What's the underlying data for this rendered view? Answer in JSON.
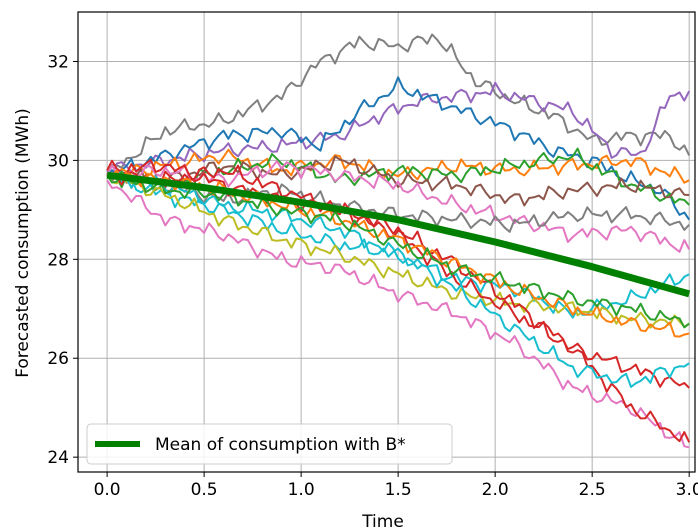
{
  "chart_data": {
    "type": "line",
    "title": "",
    "xlabel": "Time",
    "ylabel": "Forecasted consumption (MWh)",
    "xlim": [
      -0.15,
      3.03
    ],
    "ylim": [
      23.7,
      33.0
    ],
    "x_ticks": [
      0.0,
      0.5,
      1.0,
      1.5,
      2.0,
      2.5,
      3.0
    ],
    "x_tick_labels": [
      "0.0",
      "0.5",
      "1.0",
      "1.5",
      "2.0",
      "2.5",
      "3.0"
    ],
    "y_ticks": [
      24,
      26,
      28,
      30,
      32
    ],
    "y_tick_labels": [
      "24",
      "26",
      "28",
      "30",
      "32"
    ],
    "grid": true,
    "legend_position": "lower-left",
    "legend": [
      {
        "label": "Mean of consumption with B*",
        "color": "#008000"
      }
    ],
    "mean_series": {
      "name": "Mean of consumption with B*",
      "color": "#008000",
      "x": [
        0.0,
        0.5,
        1.0,
        1.5,
        2.0,
        2.5,
        3.0
      ],
      "y": [
        29.7,
        29.45,
        29.15,
        28.8,
        28.35,
        27.85,
        27.3
      ]
    },
    "series": [
      {
        "color": "#808080",
        "x": [
          0.0,
          0.3,
          0.6,
          0.9,
          1.1,
          1.3,
          1.5,
          1.7,
          1.9,
          2.1,
          2.3,
          2.5,
          2.7,
          2.9,
          3.0
        ],
        "y": [
          29.7,
          30.6,
          30.8,
          31.3,
          32.0,
          32.4,
          32.3,
          32.5,
          31.6,
          31.2,
          30.9,
          30.4,
          30.5,
          30.5,
          30.1
        ]
      },
      {
        "color": "#9467bd",
        "x": [
          0.0,
          0.3,
          0.6,
          0.9,
          1.2,
          1.4,
          1.6,
          1.8,
          2.0,
          2.2,
          2.4,
          2.6,
          2.75,
          2.9,
          3.0
        ],
        "y": [
          29.8,
          30.0,
          30.2,
          30.3,
          30.5,
          30.9,
          31.2,
          31.3,
          31.4,
          31.2,
          31.0,
          30.2,
          30.1,
          31.3,
          31.4
        ]
      },
      {
        "color": "#1f77b4",
        "x": [
          0.0,
          0.3,
          0.6,
          0.9,
          1.1,
          1.3,
          1.5,
          1.7,
          1.9,
          2.1,
          2.3,
          2.5,
          2.7,
          2.85,
          3.0
        ],
        "y": [
          29.7,
          30.1,
          30.5,
          30.6,
          30.3,
          31.0,
          31.5,
          31.2,
          30.9,
          30.6,
          30.2,
          30.0,
          29.6,
          29.4,
          28.8
        ]
      },
      {
        "color": "#ff7f0e",
        "x": [
          0.0,
          0.3,
          0.6,
          0.9,
          1.2,
          1.5,
          1.8,
          2.1,
          2.4,
          2.7,
          3.0
        ],
        "y": [
          29.7,
          29.9,
          30.1,
          29.8,
          30.0,
          29.7,
          29.9,
          29.8,
          29.9,
          30.0,
          29.6
        ]
      },
      {
        "color": "#2ca02c",
        "x": [
          0.0,
          0.3,
          0.6,
          0.9,
          1.2,
          1.5,
          1.8,
          2.1,
          2.4,
          2.7,
          3.0
        ],
        "y": [
          29.7,
          29.5,
          29.8,
          30.0,
          29.6,
          29.8,
          29.7,
          29.9,
          30.1,
          29.5,
          29.1
        ]
      },
      {
        "color": "#8c564b",
        "x": [
          0.0,
          0.3,
          0.6,
          0.9,
          1.2,
          1.5,
          1.8,
          2.1,
          2.4,
          2.7,
          3.0
        ],
        "y": [
          29.7,
          29.6,
          29.9,
          29.7,
          30.0,
          29.6,
          29.5,
          29.2,
          29.4,
          29.5,
          29.3
        ]
      },
      {
        "color": "#e377c2",
        "x": [
          0.0,
          0.3,
          0.6,
          0.9,
          1.2,
          1.5,
          1.8,
          2.1,
          2.4,
          2.7,
          3.0
        ],
        "y": [
          29.7,
          29.8,
          29.6,
          29.9,
          29.7,
          29.5,
          29.1,
          28.8,
          28.5,
          28.6,
          28.2
        ]
      },
      {
        "color": "#7f7f7f",
        "x": [
          0.0,
          0.3,
          0.6,
          0.9,
          1.2,
          1.5,
          1.8,
          2.1,
          2.4,
          2.7,
          3.0
        ],
        "y": [
          29.7,
          29.5,
          29.2,
          29.4,
          29.1,
          28.9,
          28.8,
          28.7,
          28.9,
          28.9,
          28.7
        ]
      },
      {
        "color": "#17becf",
        "x": [
          0.0,
          0.3,
          0.6,
          0.9,
          1.2,
          1.5,
          1.8,
          2.1,
          2.4,
          2.7,
          3.0
        ],
        "y": [
          29.7,
          29.3,
          29.0,
          28.6,
          28.3,
          28.1,
          27.6,
          27.4,
          26.9,
          27.2,
          27.7
        ]
      },
      {
        "color": "#bcbd22",
        "x": [
          0.0,
          0.3,
          0.6,
          0.9,
          1.2,
          1.5,
          1.8,
          2.1,
          2.4,
          2.7,
          3.0
        ],
        "y": [
          29.7,
          29.3,
          28.8,
          28.4,
          28.1,
          27.7,
          27.3,
          27.1,
          27.0,
          26.8,
          26.7
        ]
      },
      {
        "color": "#d62728",
        "x": [
          0.0,
          0.3,
          0.6,
          0.9,
          1.2,
          1.5,
          1.8,
          2.1,
          2.4,
          2.7,
          3.0
        ],
        "y": [
          29.7,
          29.6,
          29.8,
          29.4,
          29.0,
          28.5,
          27.6,
          26.9,
          26.2,
          25.8,
          25.4
        ]
      },
      {
        "color": "#e377c2",
        "x": [
          0.0,
          0.3,
          0.6,
          0.9,
          1.2,
          1.5,
          1.8,
          2.1,
          2.4,
          2.7,
          3.0
        ],
        "y": [
          29.6,
          28.8,
          28.5,
          28.0,
          27.8,
          27.3,
          26.9,
          26.3,
          25.4,
          25.0,
          24.2
        ]
      },
      {
        "color": "#d62728",
        "x": [
          0.0,
          0.3,
          0.6,
          0.9,
          1.2,
          1.5,
          1.8,
          2.1,
          2.4,
          2.7,
          3.0
        ],
        "y": [
          29.8,
          29.9,
          29.5,
          29.2,
          29.0,
          28.6,
          27.9,
          27.1,
          26.2,
          25.0,
          24.3
        ]
      },
      {
        "color": "#17becf",
        "x": [
          0.0,
          0.3,
          0.6,
          0.9,
          1.2,
          1.5,
          1.8,
          2.1,
          2.4,
          2.7,
          3.0
        ],
        "y": [
          29.7,
          29.5,
          29.1,
          28.9,
          28.6,
          28.1,
          27.4,
          26.6,
          25.8,
          25.5,
          25.9
        ]
      },
      {
        "color": "#ff7f0e",
        "x": [
          0.0,
          0.3,
          0.6,
          0.9,
          1.2,
          1.5,
          1.8,
          2.1,
          2.4,
          2.7,
          3.0
        ],
        "y": [
          29.7,
          29.6,
          29.4,
          29.1,
          28.8,
          28.4,
          27.9,
          27.4,
          27.0,
          26.7,
          26.5
        ]
      },
      {
        "color": "#2ca02c",
        "x": [
          0.0,
          0.3,
          0.6,
          0.9,
          1.2,
          1.5,
          1.8,
          2.1,
          2.4,
          2.7,
          3.0
        ],
        "y": [
          29.7,
          29.4,
          29.3,
          29.0,
          28.8,
          28.3,
          27.8,
          27.5,
          27.2,
          27.0,
          26.7
        ]
      }
    ]
  }
}
